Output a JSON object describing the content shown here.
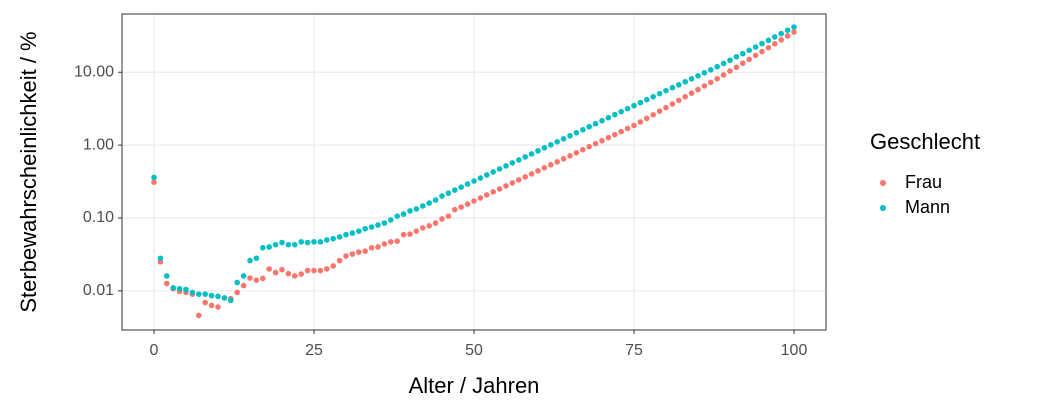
{
  "chart_data": {
    "type": "scatter",
    "x_label": "Alter / Jahren",
    "y_label": "Sterbewahrscheinlichkeit / %",
    "legend_title": "Geschlecht",
    "legend_position": "right",
    "log_y": true,
    "grid": true,
    "xlim": [
      -5,
      105
    ],
    "xticks": [
      0,
      25,
      50,
      75,
      100
    ],
    "ylim": [
      0.0029,
      63
    ],
    "yticks": [
      {
        "value": 0.01,
        "label": "0.01"
      },
      {
        "value": 0.1,
        "label": "0.10"
      },
      {
        "value": 1,
        "label": "1.00"
      },
      {
        "value": 10,
        "label": "10.00"
      }
    ],
    "x": [
      0,
      1,
      2,
      3,
      4,
      5,
      6,
      7,
      8,
      9,
      10,
      11,
      12,
      13,
      14,
      15,
      16,
      17,
      18,
      19,
      20,
      21,
      22,
      23,
      24,
      25,
      26,
      27,
      28,
      29,
      30,
      31,
      32,
      33,
      34,
      35,
      36,
      37,
      38,
      39,
      40,
      41,
      42,
      43,
      44,
      45,
      46,
      47,
      48,
      49,
      50,
      51,
      52,
      53,
      54,
      55,
      56,
      57,
      58,
      59,
      60,
      61,
      62,
      63,
      64,
      65,
      66,
      67,
      68,
      69,
      70,
      71,
      72,
      73,
      74,
      75,
      76,
      77,
      78,
      79,
      80,
      81,
      82,
      83,
      84,
      85,
      86,
      87,
      88,
      89,
      90,
      91,
      92,
      93,
      94,
      95,
      96,
      97,
      98,
      99,
      100
    ],
    "series": [
      {
        "name": "Frau",
        "color": "#F8766D",
        "values": [
          0.31,
          0.025,
          0.0126,
          0.0107,
          0.0098,
          0.0095,
          0.009,
          0.0046,
          0.0069,
          0.0063,
          0.006,
          0.008,
          0.0078,
          0.0095,
          0.0118,
          0.015,
          0.014,
          0.0148,
          0.02,
          0.0178,
          0.0195,
          0.0172,
          0.016,
          0.017,
          0.019,
          0.019,
          0.019,
          0.02,
          0.022,
          0.026,
          0.03,
          0.032,
          0.034,
          0.035,
          0.039,
          0.04,
          0.044,
          0.047,
          0.048,
          0.059,
          0.06,
          0.066,
          0.073,
          0.078,
          0.085,
          0.097,
          0.106,
          0.13,
          0.141,
          0.155,
          0.171,
          0.188,
          0.207,
          0.228,
          0.25,
          0.275,
          0.303,
          0.333,
          0.366,
          0.403,
          0.443,
          0.488,
          0.537,
          0.59,
          0.649,
          0.714,
          0.785,
          0.865,
          0.951,
          1.046,
          1.151,
          1.265,
          1.393,
          1.531,
          1.686,
          1.858,
          2.08,
          2.33,
          2.61,
          2.92,
          3.27,
          3.67,
          4.11,
          4.61,
          5.16,
          5.78,
          6.49,
          7.26,
          8.13,
          9.18,
          10.4,
          11.7,
          13.3,
          15.0,
          17.0,
          19.2,
          21.7,
          24.6,
          27.8,
          31.5,
          35.6
        ]
      },
      {
        "name": "Mann",
        "color": "#00BFC4",
        "values": [
          0.36,
          0.028,
          0.016,
          0.011,
          0.0107,
          0.0104,
          0.0095,
          0.009,
          0.009,
          0.0086,
          0.0084,
          0.008,
          0.0074,
          0.013,
          0.016,
          0.026,
          0.028,
          0.039,
          0.04,
          0.043,
          0.046,
          0.043,
          0.043,
          0.047,
          0.046,
          0.047,
          0.047,
          0.05,
          0.052,
          0.055,
          0.059,
          0.062,
          0.066,
          0.071,
          0.075,
          0.08,
          0.085,
          0.094,
          0.106,
          0.113,
          0.125,
          0.133,
          0.146,
          0.16,
          0.176,
          0.2,
          0.219,
          0.241,
          0.265,
          0.292,
          0.321,
          0.353,
          0.389,
          0.428,
          0.471,
          0.518,
          0.569,
          0.626,
          0.689,
          0.758,
          0.834,
          0.917,
          1.009,
          1.11,
          1.221,
          1.343,
          1.477,
          1.625,
          1.787,
          1.966,
          2.163,
          2.379,
          2.617,
          2.879,
          3.167,
          3.48,
          3.83,
          4.21,
          4.62,
          5.08,
          5.58,
          6.13,
          6.73,
          7.4,
          8.13,
          8.93,
          9.82,
          10.8,
          11.9,
          13.2,
          14.6,
          16.3,
          18.0,
          20.0,
          22.2,
          24.7,
          27.4,
          30.5,
          33.8,
          37.6,
          41.7
        ]
      }
    ]
  }
}
